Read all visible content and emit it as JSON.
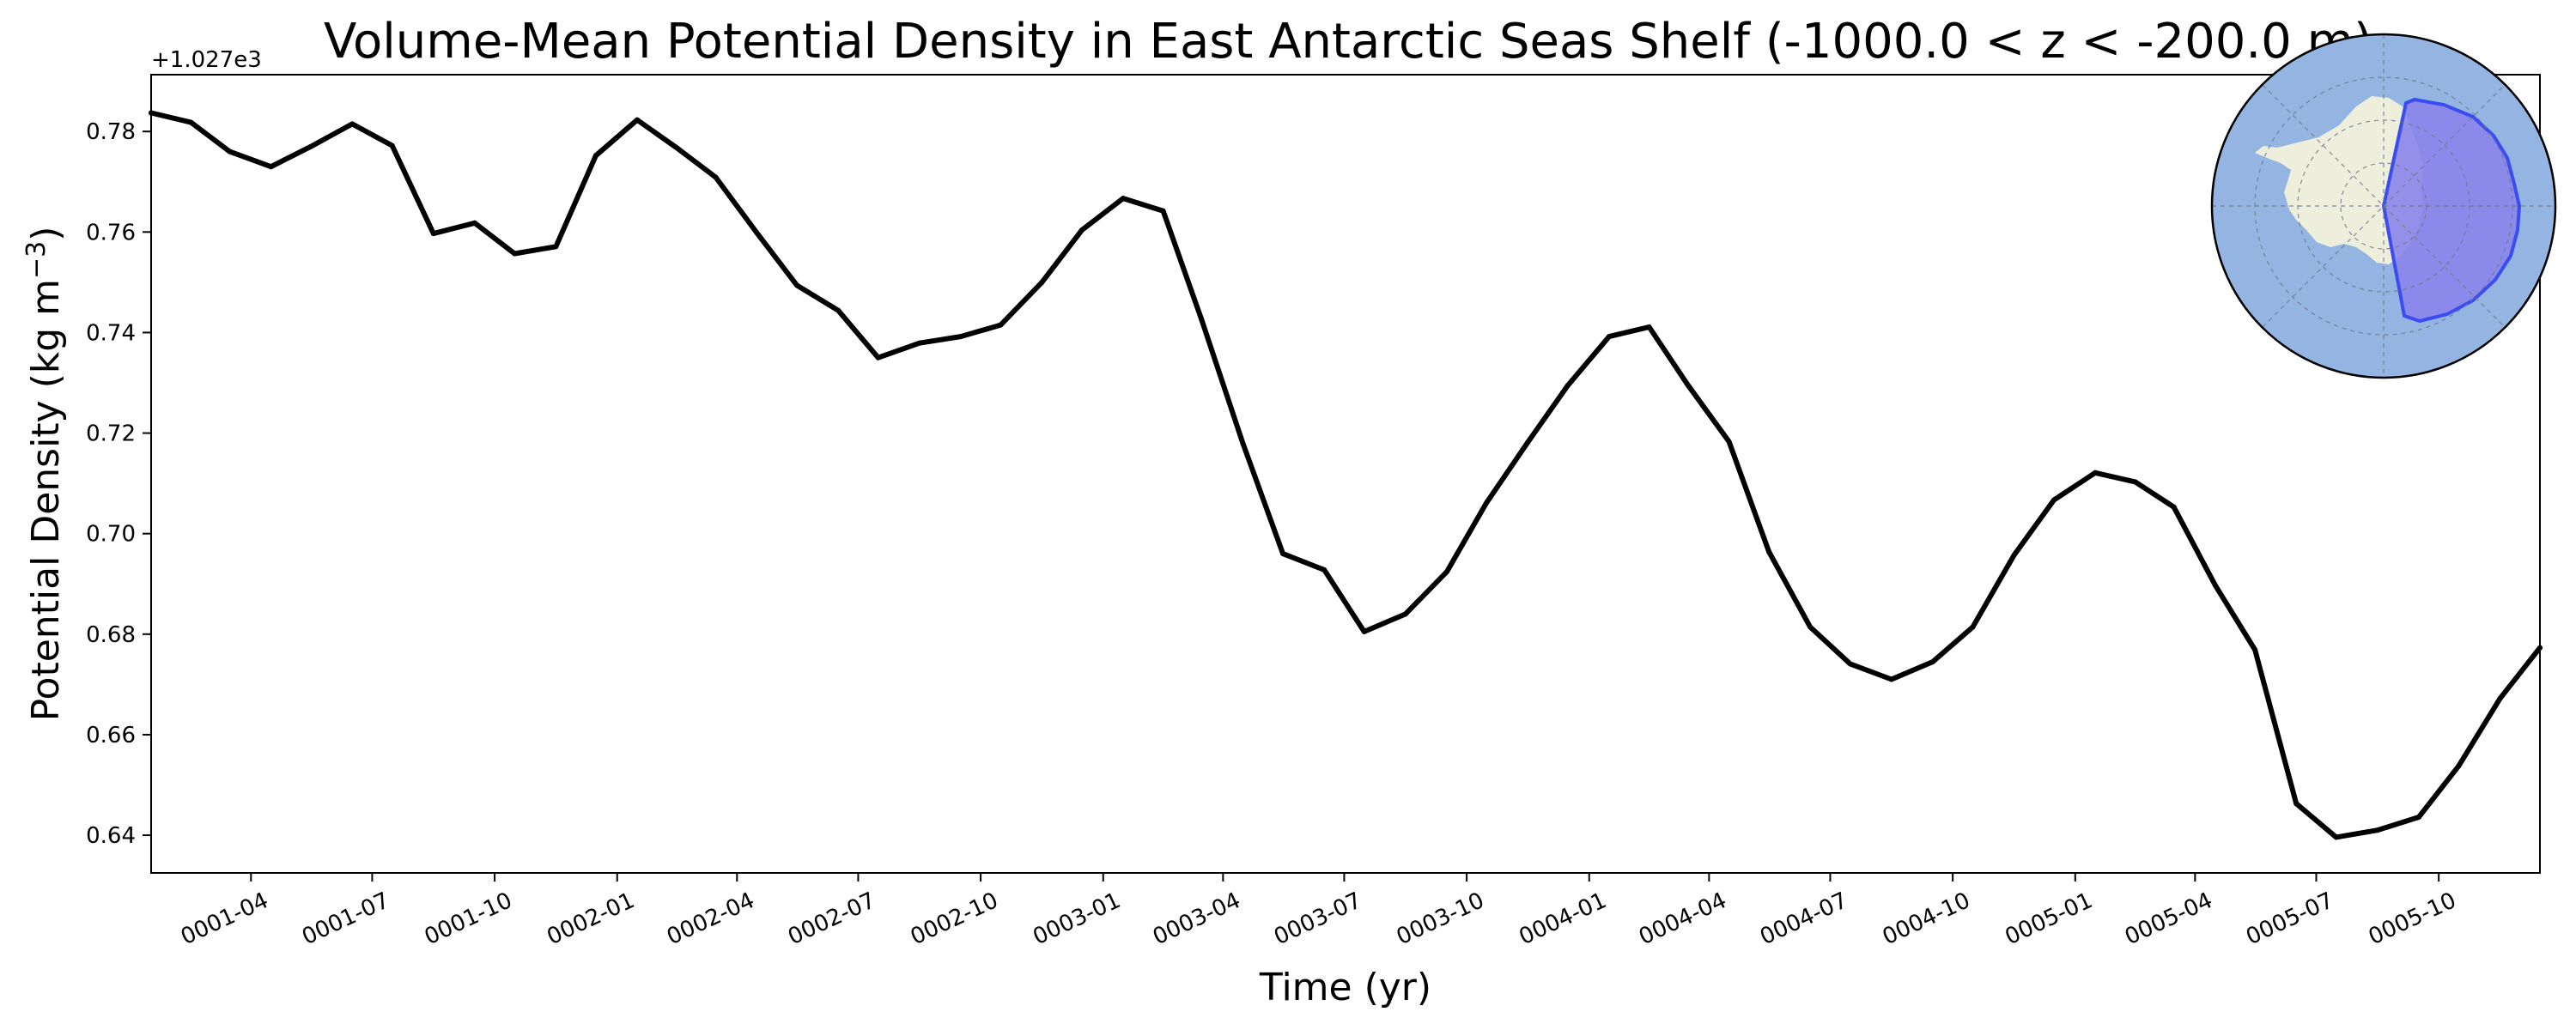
{
  "chart_data": {
    "type": "line",
    "title": "Volume-Mean Potential Density in East Antarctic Seas Shelf (-1000.0 < z < -200.0 m)",
    "xlabel": "Time (yr)",
    "ylabel_main": "Potential Density (kg m",
    "ylabel_sup": "−3",
    "ylabel_close": ")",
    "y_offset_label": "+1.027e3",
    "ylim": [
      0.6325,
      0.7913
    ],
    "grid": false,
    "line_color": "#000000",
    "yticks": [
      {
        "value": 0.64,
        "label": "0.64"
      },
      {
        "value": 0.66,
        "label": "0.66"
      },
      {
        "value": 0.68,
        "label": "0.68"
      },
      {
        "value": 0.7,
        "label": "0.70"
      },
      {
        "value": 0.72,
        "label": "0.72"
      },
      {
        "value": 0.74,
        "label": "0.74"
      },
      {
        "value": 0.76,
        "label": "0.76"
      },
      {
        "value": 0.78,
        "label": "0.78"
      }
    ],
    "xlim": [
      "0001-01-16",
      "0005-12-16"
    ],
    "xticks": [
      {
        "value": "0001-04-01",
        "label": "0001-04"
      },
      {
        "value": "0001-07-01",
        "label": "0001-07"
      },
      {
        "value": "0001-10-01",
        "label": "0001-10"
      },
      {
        "value": "0002-01-01",
        "label": "0002-01"
      },
      {
        "value": "0002-04-01",
        "label": "0002-04"
      },
      {
        "value": "0002-07-01",
        "label": "0002-07"
      },
      {
        "value": "0002-10-01",
        "label": "0002-10"
      },
      {
        "value": "0003-01-01",
        "label": "0003-01"
      },
      {
        "value": "0003-04-01",
        "label": "0003-04"
      },
      {
        "value": "0003-07-01",
        "label": "0003-07"
      },
      {
        "value": "0003-10-01",
        "label": "0003-10"
      },
      {
        "value": "0004-01-01",
        "label": "0004-01"
      },
      {
        "value": "0004-04-01",
        "label": "0004-04"
      },
      {
        "value": "0004-07-01",
        "label": "0004-07"
      },
      {
        "value": "0004-10-01",
        "label": "0004-10"
      },
      {
        "value": "0005-01-01",
        "label": "0005-01"
      },
      {
        "value": "0005-04-01",
        "label": "0005-04"
      },
      {
        "value": "0005-07-01",
        "label": "0005-07"
      },
      {
        "value": "0005-10-01",
        "label": "0005-10"
      }
    ],
    "x": [
      "0001-01-16",
      "0001-02-15",
      "0001-03-16",
      "0001-04-16",
      "0001-05-16",
      "0001-06-16",
      "0001-07-16",
      "0001-08-16",
      "0001-09-16",
      "0001-10-16",
      "0001-11-16",
      "0001-12-16",
      "0002-01-16",
      "0002-02-15",
      "0002-03-16",
      "0002-04-16",
      "0002-05-16",
      "0002-06-16",
      "0002-07-16",
      "0002-08-16",
      "0002-09-16",
      "0002-10-16",
      "0002-11-16",
      "0002-12-16",
      "0003-01-16",
      "0003-02-15",
      "0003-03-16",
      "0003-04-16",
      "0003-05-16",
      "0003-06-16",
      "0003-07-16",
      "0003-08-16",
      "0003-09-16",
      "0003-10-16",
      "0003-11-16",
      "0003-12-16",
      "0004-01-16",
      "0004-02-15",
      "0004-03-16",
      "0004-04-16",
      "0004-05-16",
      "0004-06-16",
      "0004-07-16",
      "0004-08-16",
      "0004-09-16",
      "0004-10-16",
      "0004-11-16",
      "0004-12-16",
      "0005-01-16",
      "0005-02-15",
      "0005-03-16",
      "0005-04-16",
      "0005-05-16",
      "0005-06-16",
      "0005-07-16",
      "0005-08-16",
      "0005-09-16",
      "0005-10-16",
      "0005-11-16",
      "0005-12-16"
    ],
    "y": [
      0.7837,
      0.7818,
      0.776,
      0.773,
      0.777,
      0.7815,
      0.7772,
      0.7597,
      0.7618,
      0.7557,
      0.7571,
      0.7752,
      0.7823,
      0.7767,
      0.7709,
      0.7598,
      0.7494,
      0.7444,
      0.735,
      0.7379,
      0.7392,
      0.7415,
      0.75,
      0.7604,
      0.7667,
      0.7642,
      0.7425,
      0.7179,
      0.696,
      0.6928,
      0.6805,
      0.684,
      0.6924,
      0.7062,
      0.7182,
      0.7295,
      0.7392,
      0.7411,
      0.7296,
      0.7183,
      0.6964,
      0.6814,
      0.6741,
      0.671,
      0.6745,
      0.6814,
      0.6957,
      0.7067,
      0.7121,
      0.7103,
      0.7053,
      0.6898,
      0.6769,
      0.6463,
      0.6396,
      0.641,
      0.6436,
      0.6538,
      0.6672,
      0.6773
    ]
  },
  "inset_map": {
    "ocean_color": "#94b4e1",
    "land_color": "#eeeedc",
    "region_color": "#8a84ea",
    "region_edge_color": "#3b4cf0"
  }
}
